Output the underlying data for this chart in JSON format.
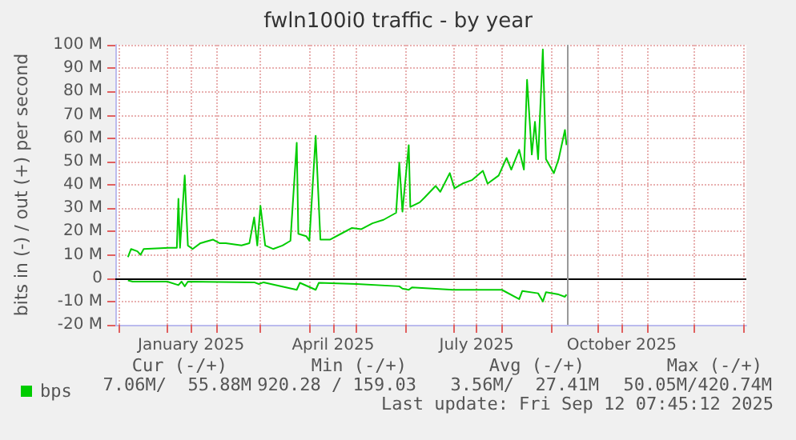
{
  "chart_data": {
    "type": "line",
    "title": "fwln100i0 traffic - by year",
    "ylabel": "bits in (-) / out (+) per second",
    "xlim": [
      "2024-11-29",
      "2026-01-03"
    ],
    "xticks": [
      {
        "value": "2024-12-01",
        "label": null
      },
      {
        "value": "2025-01-01",
        "label": null
      },
      {
        "value": "2025-01-16",
        "label": "January 2025"
      },
      {
        "value": "2025-02-01",
        "label": null
      },
      {
        "value": "2025-03-01",
        "label": null
      },
      {
        "value": "2025-04-01",
        "label": null
      },
      {
        "value": "2025-04-16",
        "label": "April 2025"
      },
      {
        "value": "2025-05-01",
        "label": null
      },
      {
        "value": "2025-06-01",
        "label": null
      },
      {
        "value": "2025-07-01",
        "label": null
      },
      {
        "value": "2025-07-16",
        "label": "July 2025"
      },
      {
        "value": "2025-08-01",
        "label": null
      },
      {
        "value": "2025-09-01",
        "label": null
      },
      {
        "value": "2025-10-01",
        "label": null
      },
      {
        "value": "2025-10-16",
        "label": "October 2025"
      },
      {
        "value": "2025-11-01",
        "label": null
      },
      {
        "value": "2025-12-01",
        "label": null
      },
      {
        "value": "2026-01-01",
        "label": null
      }
    ],
    "ylim": [
      -20,
      100
    ],
    "yticks": [
      {
        "value": -20,
        "label": "-20 M"
      },
      {
        "value": -10,
        "label": "-10 M"
      },
      0,
      {
        "value": 10,
        "label": "10 M"
      },
      {
        "value": 20,
        "label": "20 M"
      },
      {
        "value": 30,
        "label": "30 M"
      },
      {
        "value": 40,
        "label": "40 M"
      },
      {
        "value": 50,
        "label": "50 M"
      },
      {
        "value": 60,
        "label": "60 M"
      },
      {
        "value": 70,
        "label": "70 M"
      },
      {
        "value": 80,
        "label": "80 M"
      },
      {
        "value": 90,
        "label": "90 M"
      },
      {
        "value": 100,
        "label": "100 M"
      }
    ],
    "series": [
      {
        "name": "bps",
        "color": "#00cc00",
        "x": [
          "2024-12-07",
          "2024-12-09",
          "2024-12-13",
          "2024-12-15",
          "2024-12-17",
          "2025-01-02",
          "2025-01-07",
          "2025-01-08",
          "2025-01-09",
          "2025-01-12",
          "2025-01-14",
          "2025-01-17",
          "2025-01-22",
          "2025-01-30",
          "2025-02-03",
          "2025-02-07",
          "2025-02-17",
          "2025-02-22",
          "2025-02-25",
          "2025-02-27",
          "2025-03-01",
          "2025-03-04",
          "2025-03-09",
          "2025-03-15",
          "2025-03-20",
          "2025-03-24",
          "2025-03-25",
          "2025-03-30",
          "2025-04-01",
          "2025-04-05",
          "2025-04-08",
          "2025-04-14",
          "2025-04-21",
          "2025-04-28",
          "2025-05-04",
          "2025-05-11",
          "2025-05-18",
          "2025-05-26",
          "2025-05-28",
          "2025-05-30",
          "2025-06-03",
          "2025-06-04",
          "2025-06-10",
          "2025-06-13",
          "2025-06-20",
          "2025-06-23",
          "2025-06-29",
          "2025-07-02",
          "2025-07-07",
          "2025-07-13",
          "2025-07-20",
          "2025-07-23",
          "2025-07-30",
          "2025-08-04",
          "2025-08-07",
          "2025-08-12",
          "2025-08-15",
          "2025-08-17",
          "2025-08-20",
          "2025-08-22",
          "2025-08-24",
          "2025-08-27",
          "2025-08-29",
          "2025-09-03",
          "2025-09-06",
          "2025-09-10",
          "2025-09-11"
        ],
        "values": [
          9,
          12.5,
          11.5,
          10,
          12.5,
          13,
          13,
          34,
          13,
          44,
          14,
          12.5,
          15,
          16.5,
          15,
          15,
          14,
          15,
          26,
          14,
          31,
          14,
          12.5,
          14,
          16,
          58,
          19,
          18,
          16,
          61,
          16.5,
          16.5,
          19,
          21.5,
          21,
          23.5,
          25,
          28,
          49.5,
          28.5,
          57,
          30.5,
          32.5,
          34.5,
          39.5,
          37,
          45,
          38.5,
          40.5,
          42,
          46,
          40.5,
          44,
          51.5,
          46.5,
          55,
          46.5,
          85,
          53,
          67,
          51,
          98,
          51,
          45,
          51,
          63.5,
          57
        ]
      },
      {
        "color": "#00cc00",
        "x": [
          "2024-12-07",
          "2024-12-10",
          "2025-01-01",
          "2025-01-08",
          "2025-01-10",
          "2025-01-12",
          "2025-01-14",
          "2025-02-25",
          "2025-02-28",
          "2025-03-03",
          "2025-03-24",
          "2025-03-26",
          "2025-04-05",
          "2025-04-07",
          "2025-05-01",
          "2025-05-28",
          "2025-05-30",
          "2025-06-03",
          "2025-06-05",
          "2025-07-01",
          "2025-08-01",
          "2025-08-12",
          "2025-08-14",
          "2025-08-24",
          "2025-08-27",
          "2025-08-29",
          "2025-09-06",
          "2025-09-10",
          "2025-09-11"
        ],
        "values": [
          -1,
          -1.5,
          -1.5,
          -3,
          -1.5,
          -3.5,
          -1.5,
          -1.8,
          -2.5,
          -1.8,
          -5,
          -2,
          -5,
          -2,
          -2.5,
          -3.5,
          -4.5,
          -5,
          -4,
          -5,
          -5,
          -9,
          -5.5,
          -6.5,
          -10,
          -6,
          -7,
          -8,
          -7
        ]
      }
    ],
    "ref_lines": [
      {
        "axis": "y",
        "value": 0,
        "color": "#000000"
      },
      {
        "axis": "x",
        "value": "2025-09-12",
        "color": "#999999"
      }
    ],
    "grid": true,
    "legend": "bottom left",
    "annotations": [
      "Cur (-/+)",
      "Min (-/+)",
      "Avg (-/+)",
      "Max (-/+)",
      "7.06M/  55.88M",
      "920.28 / 159.03",
      "3.56M/  27.41M",
      "50.05M/420.74M",
      "Last update: Fri Sep 12 07:45:12 2025"
    ]
  }
}
